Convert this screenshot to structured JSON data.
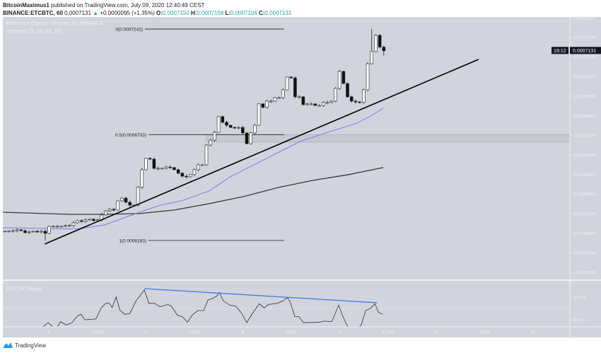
{
  "header": {
    "author": "BitcoinMaximus1",
    "published": "published on TradingView.com, July 09, 2020 12:40:49 CEST",
    "symbol": "BINANCE:ETCBTC, 60",
    "last": "0.0007131",
    "change": "+0.0000095 (+1.35%)",
    "o_label": "O:",
    "o": "0.0007150",
    "h_label": "H:",
    "h": "0.0007158",
    "l_label": "L:",
    "l": "0.0007106",
    "c_label": "C:",
    "c": "0.0007131"
  },
  "footer": {
    "brand": "TradingView"
  },
  "colors": {
    "pane_bg": "#d1d4dc",
    "bull": "#ffffff",
    "bear": "#111111",
    "ma_fast": "#7b7fe8",
    "ma_slow": "#3a3a3a",
    "trendline": "#000000",
    "rsi_line": "#333333",
    "rsi_trend": "#3d7be0",
    "up": "#26a69a",
    "price_label_bg": "#131722"
  },
  "chart_data": [
    {
      "type": "candlestick",
      "title": "Ethereum Classic / Bitcoin, 1h, BINANCE",
      "indicator_label": "Ichimoku (9, 26, 52, 26)",
      "ylim": [
        0.0006,
        0.00073
      ],
      "y_ticks": [
        "0.0007300",
        "0.0007200",
        "0.0007100",
        "0.0007000",
        "0.0006900",
        "0.0006800",
        "0.0006700",
        "0.0006600",
        "0.0006500",
        "0.0006400",
        "0.0006300",
        "0.0006200",
        "0.0006100",
        "0.0006000"
      ],
      "x_ticks": [
        {
          "i": 11,
          "label": "6"
        },
        {
          "i": 23,
          "label": "12:00"
        },
        {
          "i": 35,
          "label": "7"
        },
        {
          "i": 47,
          "label": "12:00"
        },
        {
          "i": 59,
          "label": "8"
        },
        {
          "i": 71,
          "label": "12:00"
        },
        {
          "i": 83,
          "label": "9"
        },
        {
          "i": 95,
          "label": "12:00"
        },
        {
          "i": 107,
          "label": "10"
        },
        {
          "i": 119,
          "label": "12:00"
        },
        {
          "i": 131,
          "label": "11"
        }
      ],
      "closes": [
        0.000621,
        0.000621,
        0.0006213,
        0.0006217,
        0.0006213,
        0.0006203,
        0.0006206,
        0.000621,
        0.0006206,
        0.000621,
        0.0006199,
        0.0006235,
        0.0006235,
        0.0006235,
        0.0006235,
        0.0006239,
        0.0006239,
        0.0006253,
        0.0006264,
        0.000626,
        0.0006268,
        0.0006271,
        0.0006264,
        0.0006268,
        0.0006293,
        0.0006314,
        0.0006322,
        0.0006318,
        0.0006365,
        0.0006379,
        0.0006358,
        0.0006343,
        0.0006343,
        0.0006434,
        0.0006524,
        0.0006582,
        0.0006578,
        0.0006531,
        0.0006531,
        0.0006531,
        0.0006538,
        0.0006535,
        0.0006524,
        0.0006506,
        0.0006491,
        0.0006488,
        0.0006499,
        0.0006524,
        0.0006549,
        0.0006549,
        0.000665,
        0.0006675,
        0.0006715,
        0.0006795,
        0.0006766,
        0.0006751,
        0.000674,
        0.0006737,
        0.000674,
        0.0006712,
        0.0006657,
        0.0006712,
        0.0006751,
        0.000686,
        0.0006842,
        0.0006874,
        0.0006874,
        0.0006892,
        0.0006892,
        0.0006932,
        0.0006997,
        0.0006993,
        0.0006896,
        0.0006896,
        0.0006856,
        0.000686,
        0.000686,
        0.0006852,
        0.0006852,
        0.0006867,
        0.0006867,
        0.0006874,
        0.0006939,
        0.0007026,
        0.0006964,
        0.0006896,
        0.0006874,
        0.000687,
        0.0006867,
        0.0006932,
        0.0007065,
        0.0007127,
        0.000721,
        0.000715,
        0.0007131
      ],
      "last_price_label": "0.0007131",
      "countdown_label": "19:12",
      "ma_fast": [
        [
          -0.5,
          0.0006228
        ],
        [
          17.8,
          0.0006221
        ],
        [
          24.7,
          0.0006242
        ],
        [
          33.4,
          0.0006307
        ],
        [
          38.6,
          0.0006343
        ],
        [
          43.8,
          0.0006365
        ],
        [
          50.7,
          0.0006416
        ],
        [
          55.9,
          0.0006488
        ],
        [
          61.1,
          0.0006542
        ],
        [
          68,
          0.0006614
        ],
        [
          73.2,
          0.0006668
        ],
        [
          80.1,
          0.0006715
        ],
        [
          87,
          0.0006759
        ],
        [
          90.5,
          0.0006795
        ],
        [
          93.9,
          0.0006838
        ]
      ],
      "ma_slow": [
        [
          -0.5,
          0.0006307
        ],
        [
          16.1,
          0.0006296
        ],
        [
          24.7,
          0.0006296
        ],
        [
          33.4,
          0.00063
        ],
        [
          42,
          0.0006318
        ],
        [
          50.7,
          0.0006351
        ],
        [
          59.3,
          0.0006387
        ],
        [
          68,
          0.0006434
        ],
        [
          76.6,
          0.000647
        ],
        [
          85.3,
          0.0006499
        ],
        [
          93.9,
          0.0006535
        ]
      ],
      "trendline": [
        [
          9.9,
          0.0006145
        ],
        [
          117.5,
          0.0007087
        ]
      ],
      "fib_levels": [
        {
          "label": "0(0.0007242)",
          "price": 0.0007242
        },
        {
          "label": "0.5(0.0006703)",
          "price": 0.0006703
        },
        {
          "label": "1(0.0006163)",
          "price": 0.0006163
        }
      ],
      "support_zone": [
        0.0006665,
        0.0006703
      ]
    },
    {
      "type": "line",
      "title": "RSI (14, close)",
      "ylim": [
        55,
        90
      ],
      "y_ticks": [
        "80.00",
        "60.00"
      ],
      "overbought": 70,
      "values": [
        [
          8,
          50
        ],
        [
          10.7,
          57.4
        ],
        [
          11.4,
          55.4
        ],
        [
          12.4,
          50
        ],
        [
          13.8,
          58.4
        ],
        [
          15.2,
          55.4
        ],
        [
          16.6,
          57.4
        ],
        [
          18,
          63.4
        ],
        [
          18.9,
          64.8
        ],
        [
          19.8,
          60
        ],
        [
          21.7,
          60.4
        ],
        [
          22.6,
          60.8
        ],
        [
          23.9,
          70.5
        ],
        [
          25,
          74.5
        ],
        [
          25.9,
          74.5
        ],
        [
          26.6,
          70.9
        ],
        [
          27.6,
          80.2
        ],
        [
          28.5,
          68.5
        ],
        [
          29.7,
          64.8
        ],
        [
          31,
          65.5
        ],
        [
          32.5,
          76.6
        ],
        [
          34.6,
          86.3
        ],
        [
          35.7,
          74.5
        ],
        [
          37.1,
          74.5
        ],
        [
          38.5,
          71.5
        ],
        [
          40.4,
          73.5
        ],
        [
          41.3,
          72.1
        ],
        [
          42.7,
          64.4
        ],
        [
          44.1,
          62.4
        ],
        [
          45.3,
          57.8
        ],
        [
          46.5,
          64.4
        ],
        [
          47.9,
          68.1
        ],
        [
          49.3,
          68.1
        ],
        [
          50.4,
          77.6
        ],
        [
          51.4,
          78.6
        ],
        [
          52.6,
          81
        ],
        [
          53.2,
          84.2
        ],
        [
          54.2,
          76.6
        ],
        [
          55.8,
          72.9
        ],
        [
          57.2,
          72.1
        ],
        [
          58.6,
          66.5
        ],
        [
          60,
          57.4
        ],
        [
          61.2,
          64.4
        ],
        [
          63.1,
          74.1
        ],
        [
          64.3,
          70.5
        ],
        [
          65.4,
          73.5
        ],
        [
          67.5,
          74.5
        ],
        [
          69,
          76.6
        ],
        [
          70.1,
          79.6
        ],
        [
          70.8,
          75.6
        ],
        [
          71.9,
          62.8
        ],
        [
          72.9,
          62.8
        ],
        [
          74.1,
          57.4
        ],
        [
          76.4,
          57.6
        ],
        [
          78.3,
          58
        ],
        [
          79.2,
          58.8
        ],
        [
          81.1,
          58.4
        ],
        [
          82.8,
          72.9
        ],
        [
          83.7,
          64.4
        ],
        [
          84.8,
          55.4
        ],
        [
          86.2,
          48
        ],
        [
          88.4,
          55.4
        ],
        [
          89.5,
          68.1
        ],
        [
          90.9,
          70.5
        ],
        [
          91.8,
          74.1
        ],
        [
          92.7,
          66.5
        ],
        [
          93.7,
          64.8
        ]
      ],
      "divergence_line": [
        [
          34.6,
          87.5
        ],
        [
          92.4,
          75
        ]
      ]
    }
  ]
}
